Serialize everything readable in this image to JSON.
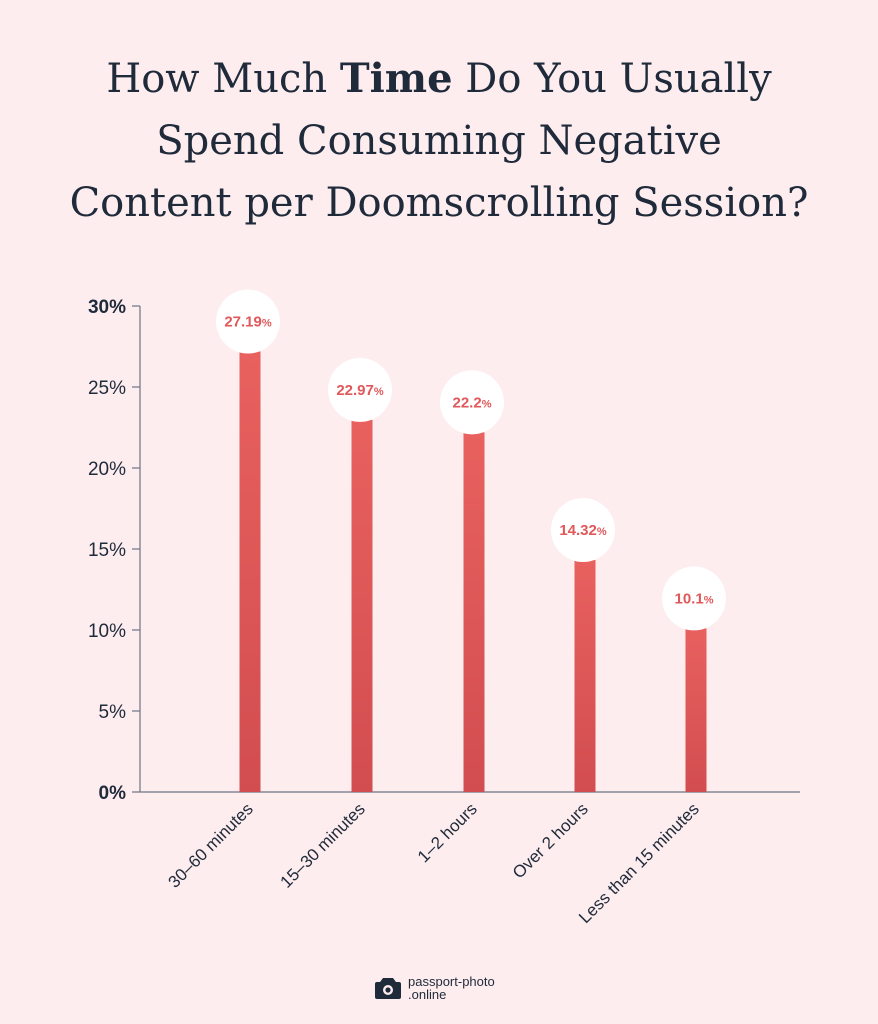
{
  "title": {
    "line1_before": "How Much ",
    "line1_bold": "Time",
    "line1_after": " Do You Usually",
    "line2": "Spend Consuming Negative",
    "line3": "Content per Doomscrolling Session?"
  },
  "chart_data": {
    "type": "bar",
    "categories": [
      "30–60 minutes",
      "15–30 minutes",
      "1–2 hours",
      "Over 2 hours",
      "Less than 15 minutes"
    ],
    "values": [
      27.19,
      22.97,
      22.2,
      14.32,
      10.1
    ],
    "value_labels": [
      "27.19",
      "22.97",
      "22.2",
      "14.32",
      "10.1"
    ],
    "value_unit": "%",
    "y_ticks": [
      "0%",
      "5%",
      "10%",
      "15%",
      "20%",
      "25%",
      "30%"
    ],
    "ylim": [
      0,
      30
    ],
    "grid": false,
    "bar_color_top": "#e8615f",
    "bar_color_bottom": "#d24d50",
    "label_color": "#e0585a"
  },
  "brand": {
    "line1": "passport-photo",
    "line2": ".online",
    "icon": "camera-icon"
  }
}
